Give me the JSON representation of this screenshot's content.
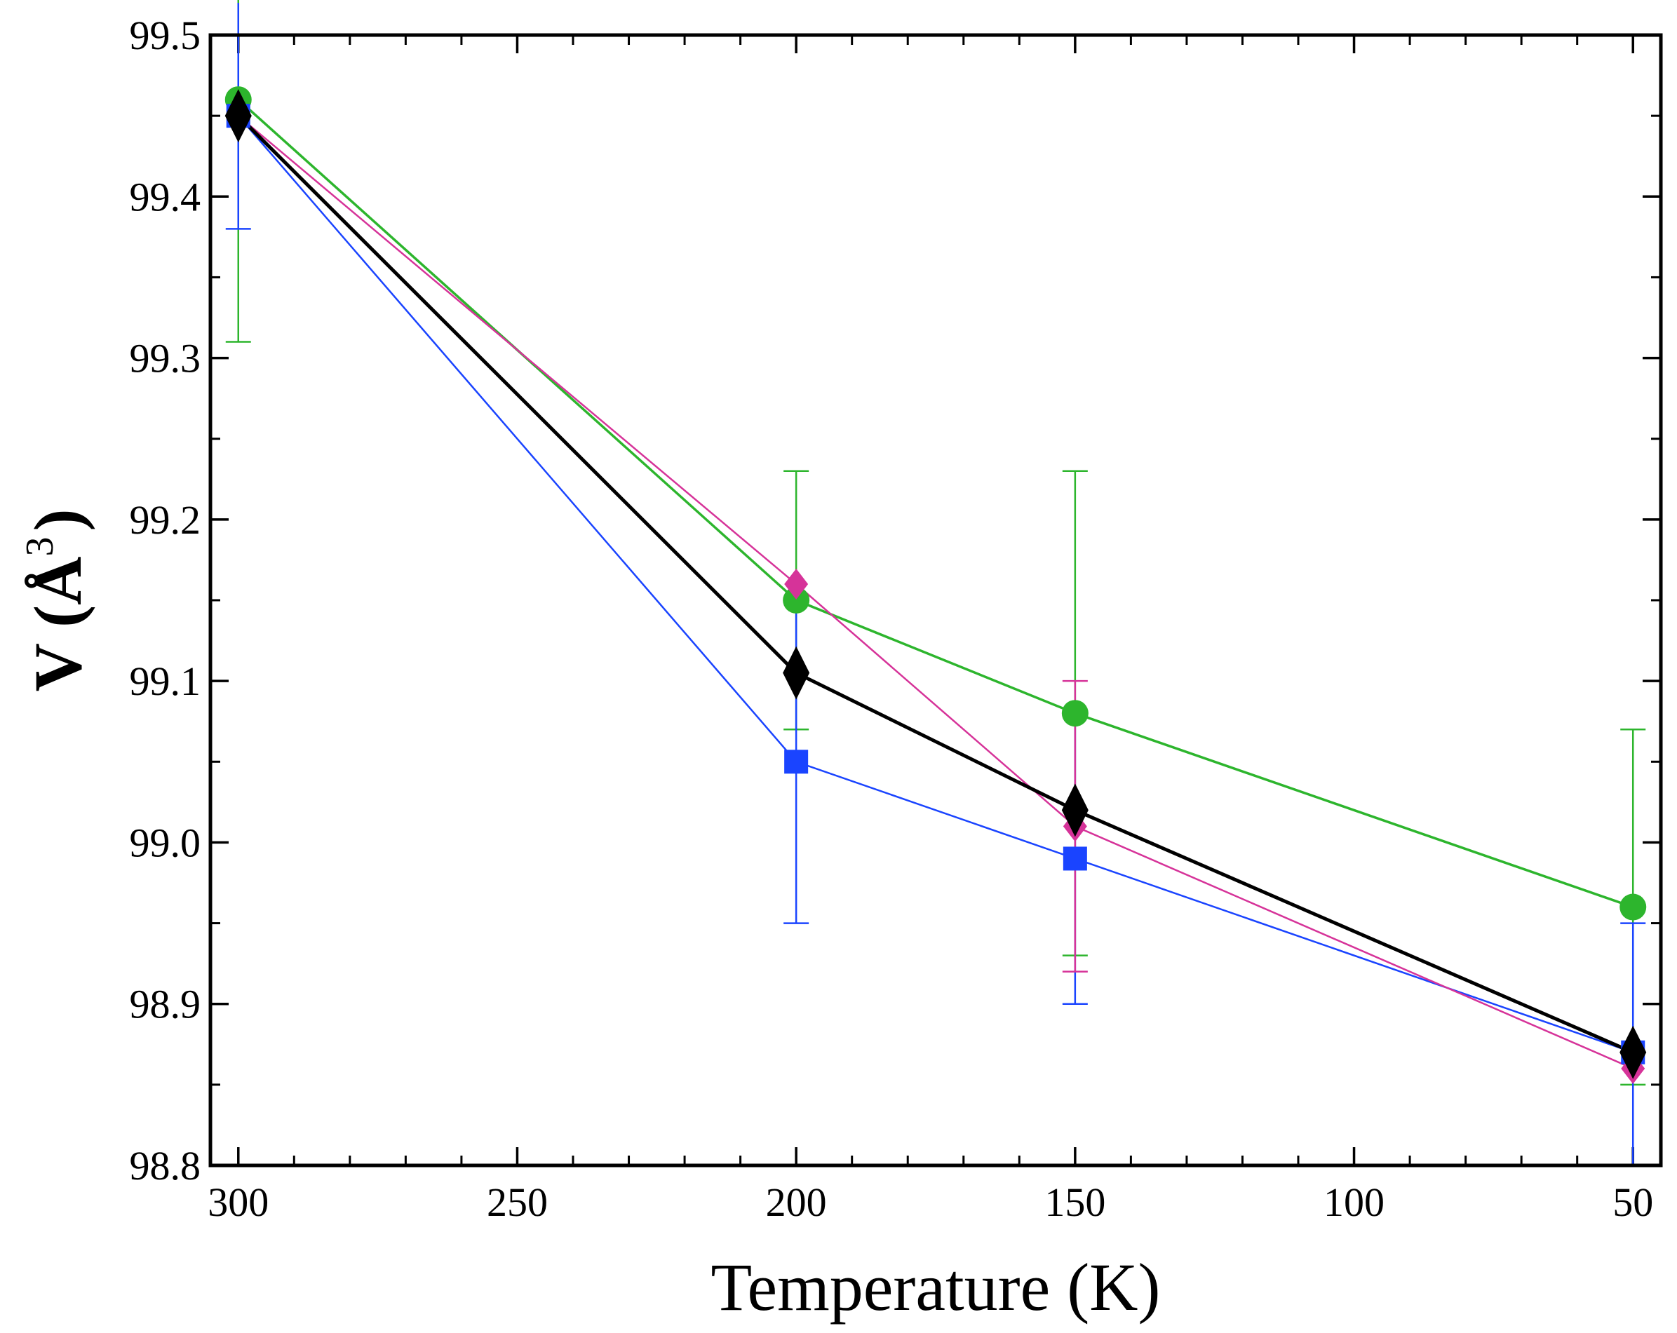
{
  "chart_data": {
    "type": "line",
    "title": "",
    "xlabel": "Temperature (K)",
    "ylabel": {
      "main": "V (Å",
      "sup": "3",
      "close": ")"
    },
    "xlim": [
      305,
      45
    ],
    "ylim": [
      98.8,
      99.5
    ],
    "x_reversed": true,
    "grid": false,
    "legend": "none",
    "x_major_ticks": [
      300,
      250,
      200,
      150,
      100,
      50
    ],
    "x_tick_labels": [
      "300",
      "250",
      "200",
      "150",
      "100",
      "50"
    ],
    "x_minor_ticks": [
      290,
      280,
      270,
      260,
      240,
      230,
      220,
      210,
      190,
      180,
      170,
      160,
      140,
      130,
      120,
      110,
      90,
      80,
      70,
      60
    ],
    "y_major_ticks": [
      98.8,
      98.9,
      99.0,
      99.1,
      99.2,
      99.3,
      99.4,
      99.5
    ],
    "y_tick_labels": [
      "98.8",
      "98.9",
      "99.0",
      "99.1",
      "99.2",
      "99.3",
      "99.4",
      "99.5"
    ],
    "y_minor_ticks": [
      98.85,
      98.95,
      99.05,
      99.15,
      99.25,
      99.35,
      99.45
    ],
    "series": [
      {
        "name": "green-circles",
        "color": "#2db52d",
        "marker": "circle",
        "x": [
          300,
          200,
          150,
          50
        ],
        "y": [
          99.46,
          99.15,
          99.08,
          98.96
        ],
        "err": [
          0.15,
          0.08,
          0.15,
          0.11
        ]
      },
      {
        "name": "blue-squares",
        "color": "#1a44ff",
        "marker": "square",
        "x": [
          300,
          200,
          150,
          50
        ],
        "y": [
          99.45,
          99.05,
          98.99,
          98.87
        ],
        "err": [
          0.07,
          0.1,
          0.09,
          0.08
        ]
      },
      {
        "name": "magenta-diamonds",
        "color": "#d63399",
        "marker": "diamond",
        "x": [
          300,
          200,
          150,
          50
        ],
        "y": [
          99.45,
          99.16,
          99.01,
          98.86
        ],
        "err": [
          0.0,
          0.0,
          0.09,
          0.0
        ]
      },
      {
        "name": "black-diamonds",
        "color": "#000000",
        "marker": "diamond-large",
        "x": [
          300,
          200,
          150,
          50
        ],
        "y": [
          99.45,
          99.105,
          99.02,
          98.87
        ],
        "err": [
          0.0,
          0.0,
          0.0,
          0.0
        ]
      }
    ]
  }
}
